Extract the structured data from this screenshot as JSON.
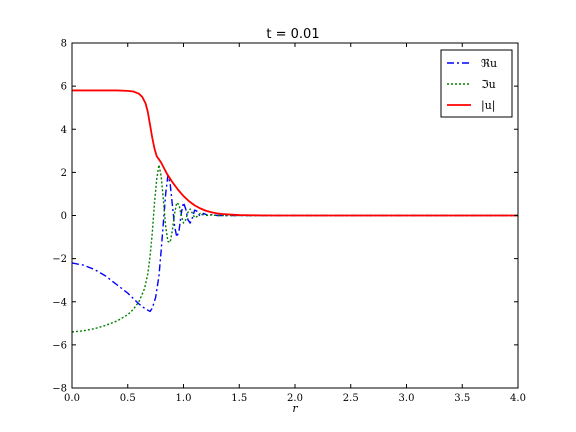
{
  "chart_data": {
    "type": "line",
    "title": "t = 0.01",
    "xlabel": "r",
    "ylabel": "",
    "xlim": [
      0.0,
      4.0
    ],
    "ylim": [
      -8,
      8
    ],
    "xticks": [
      "0.0",
      "0.5",
      "1.0",
      "1.5",
      "2.0",
      "2.5",
      "3.0",
      "3.5",
      "4.0"
    ],
    "yticks": [
      "−8",
      "−6",
      "−4",
      "−2",
      "0",
      "2",
      "4",
      "6",
      "8"
    ],
    "grid": false,
    "legend_position": "top-right",
    "series": [
      {
        "name": "ℜu",
        "color": "#0000ff",
        "style": "dashdot",
        "x": [
          0.0,
          0.1,
          0.2,
          0.3,
          0.4,
          0.5,
          0.55,
          0.6,
          0.65,
          0.7,
          0.72,
          0.75,
          0.78,
          0.8,
          0.82,
          0.84,
          0.86,
          0.88,
          0.9,
          0.92,
          0.94,
          0.96,
          0.98,
          1.0,
          1.02,
          1.04,
          1.06,
          1.08,
          1.1,
          1.12,
          1.15,
          1.18,
          1.22,
          1.26,
          1.3,
          1.4,
          1.5,
          1.7,
          2.0,
          2.5,
          3.0,
          3.5,
          4.0
        ],
        "y": [
          -2.2,
          -2.3,
          -2.5,
          -2.8,
          -3.2,
          -3.6,
          -3.85,
          -4.1,
          -4.3,
          -4.45,
          -4.3,
          -3.8,
          -2.8,
          -1.6,
          -0.3,
          1.0,
          1.85,
          1.5,
          0.5,
          -0.5,
          -1.0,
          -0.7,
          0.1,
          0.6,
          0.3,
          -0.2,
          -0.35,
          -0.1,
          0.25,
          0.2,
          -0.05,
          0.1,
          0.0,
          0.05,
          0.0,
          0.0,
          0.0,
          0.0,
          0.0,
          0.0,
          0.0,
          0.0,
          0.0
        ]
      },
      {
        "name": "ℑu",
        "color": "#008000",
        "style": "dotted",
        "x": [
          0.0,
          0.1,
          0.2,
          0.3,
          0.4,
          0.5,
          0.55,
          0.6,
          0.65,
          0.68,
          0.7,
          0.72,
          0.74,
          0.76,
          0.78,
          0.8,
          0.82,
          0.84,
          0.86,
          0.88,
          0.9,
          0.92,
          0.94,
          0.96,
          0.98,
          1.0,
          1.02,
          1.04,
          1.06,
          1.08,
          1.1,
          1.12,
          1.15,
          1.2,
          1.25,
          1.3,
          1.4,
          1.5,
          1.7,
          2.0,
          2.5,
          3.0,
          3.5,
          4.0
        ],
        "y": [
          -5.4,
          -5.35,
          -5.25,
          -5.1,
          -4.9,
          -4.6,
          -4.35,
          -4.0,
          -3.4,
          -2.7,
          -1.9,
          -0.8,
          0.6,
          1.7,
          2.35,
          1.8,
          0.7,
          -0.5,
          -1.2,
          -1.25,
          -0.7,
          0.1,
          0.6,
          0.5,
          0.0,
          -0.35,
          -0.2,
          0.15,
          0.3,
          0.1,
          -0.1,
          -0.05,
          0.1,
          0.0,
          0.03,
          0.0,
          0.0,
          0.0,
          0.0,
          0.0,
          0.0,
          0.0,
          0.0,
          0.0
        ]
      },
      {
        "name": "|u|",
        "color": "#ff0000",
        "style": "solid",
        "x": [
          0.0,
          0.2,
          0.4,
          0.5,
          0.55,
          0.6,
          0.63,
          0.66,
          0.68,
          0.7,
          0.72,
          0.74,
          0.76,
          0.78,
          0.8,
          0.82,
          0.85,
          0.9,
          0.95,
          1.0,
          1.05,
          1.1,
          1.15,
          1.2,
          1.25,
          1.3,
          1.35,
          1.4,
          1.5,
          1.6,
          1.8,
          2.0,
          2.5,
          3.0,
          3.5,
          4.0
        ],
        "y": [
          5.8,
          5.8,
          5.8,
          5.78,
          5.75,
          5.65,
          5.5,
          5.2,
          4.8,
          4.2,
          3.6,
          3.1,
          2.75,
          2.6,
          2.45,
          2.25,
          1.95,
          1.55,
          1.2,
          0.9,
          0.66,
          0.47,
          0.33,
          0.22,
          0.15,
          0.1,
          0.07,
          0.05,
          0.02,
          0.01,
          0.0,
          0.0,
          0.0,
          0.0,
          0.0,
          0.0
        ]
      }
    ]
  }
}
